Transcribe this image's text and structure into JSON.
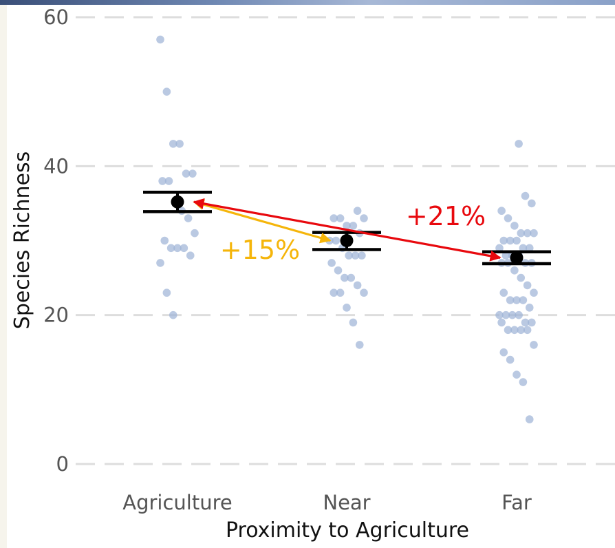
{
  "chart_data": {
    "type": "scatter",
    "xlabel": "Proximity to Agriculture",
    "ylabel": "Species Richness",
    "categories": [
      "Agriculture",
      "Near",
      "Far"
    ],
    "ylim": [
      0,
      60
    ],
    "yticks": [
      0,
      20,
      40,
      60
    ],
    "grid": "horizontal dashed",
    "points": [
      {
        "category": "Agriculture",
        "values": [
          57,
          50,
          43,
          43,
          39,
          39,
          38,
          38,
          35,
          34,
          33,
          31,
          30,
          29,
          29,
          29,
          28,
          27,
          23,
          20
        ]
      },
      {
        "category": "Near",
        "values": [
          34,
          33,
          33,
          33,
          32,
          32,
          31,
          30,
          30,
          29,
          28,
          28,
          28,
          27,
          26,
          25,
          25,
          24,
          23,
          23,
          23,
          21,
          19,
          16
        ]
      },
      {
        "category": "Far",
        "values": [
          43,
          36,
          35,
          34,
          33,
          32,
          31,
          31,
          31,
          30,
          30,
          30,
          29,
          29,
          29,
          28,
          28,
          28,
          27,
          27,
          27,
          27,
          26,
          25,
          24,
          23,
          23,
          22,
          22,
          22,
          21,
          20,
          20,
          20,
          20,
          19,
          19,
          19,
          18,
          18,
          18,
          18,
          16,
          15,
          14,
          12,
          11,
          6
        ]
      }
    ],
    "means": [
      {
        "category": "Agriculture",
        "mean": 35.2,
        "upper": 36.5,
        "lower": 33.9
      },
      {
        "category": "Near",
        "mean": 30.0,
        "upper": 31.1,
        "lower": 28.8
      },
      {
        "category": "Far",
        "mean": 27.7,
        "upper": 28.5,
        "lower": 26.9
      }
    ],
    "annotations": [
      {
        "text": "+15%",
        "color": "#f5b50a",
        "from": "Agriculture",
        "to": "Near"
      },
      {
        "text": "+21%",
        "color": "#e8090e",
        "from": "Agriculture",
        "to": "Far"
      }
    ],
    "colors": {
      "points": "#9db2d6",
      "means": "#000000",
      "grid": "#dddddd"
    }
  }
}
